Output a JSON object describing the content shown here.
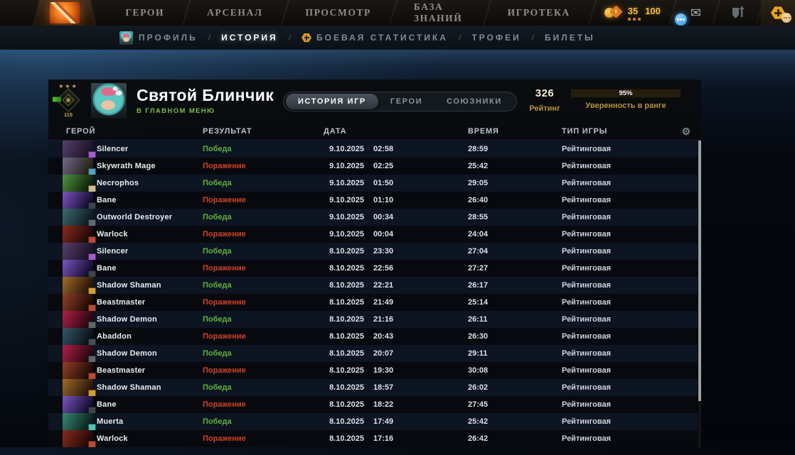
{
  "icons": {
    "settings_glyph": "⚙",
    "mail_glyph": "✉",
    "stars_glyph": "★ ★ ★"
  },
  "top_nav": {
    "items": [
      "ГЕРОИ",
      "АРСЕНАЛ",
      "ПРОСМОТР",
      "БАЗА ЗНАНИЙ",
      "ИГРОТЕКА"
    ],
    "currency": {
      "shards": "35",
      "gold": "100"
    }
  },
  "breadcrumb": {
    "items": [
      {
        "label": "ПРОФИЛЬ",
        "sep": "",
        "icon": "ic-avatar",
        "state": ""
      },
      {
        "label": "ИСТОРИЯ",
        "sep": "/",
        "icon": "",
        "state": "active"
      },
      {
        "label": "БОЕВАЯ СТАТИСТИКА",
        "sep": "/",
        "icon": "ic-coin",
        "state": ""
      },
      {
        "label": "ТРОФЕИ",
        "sep": "/",
        "icon": "",
        "state": ""
      },
      {
        "label": "БИЛЕТЫ",
        "sep": "/",
        "icon": "",
        "state": ""
      }
    ]
  },
  "profile": {
    "name": "Святой Блинчик",
    "status": "В ГЛАВНОМ МЕНЮ",
    "rank_stars": "★★★",
    "rank_number": "115",
    "tabs": [
      {
        "label": "ИСТОРИЯ ИГР",
        "state": "active"
      },
      {
        "label": "ГЕРОИ",
        "state": ""
      },
      {
        "label": "СОЮЗНИКИ",
        "state": ""
      }
    ],
    "rating": {
      "value": "326",
      "label": "Рейтинг"
    },
    "confidence": {
      "percent": "95%",
      "label": "Уверенность в ранге"
    }
  },
  "table": {
    "columns": [
      "ГЕРОЙ",
      "РЕЗУЛЬТАТ",
      "ДАТА",
      "ВРЕМЯ",
      "ТИП ИГРЫ"
    ],
    "rows": [
      {
        "hero": "Silencer",
        "result": "Победа",
        "result_class": "win",
        "date": "9.10.2025",
        "time": "02:58",
        "duration": "28:59",
        "type": "Рейтинговая",
        "portrait": [
          "#56406a",
          "#1b1226"
        ],
        "badge": "#a55cd0"
      },
      {
        "hero": "Skywrath Mage",
        "result": "Поражение",
        "result_class": "loss",
        "date": "9.10.2025",
        "time": "02:25",
        "duration": "25:42",
        "type": "Рейтинговая",
        "portrait": [
          "#6f6a8a",
          "#262016"
        ],
        "badge": "#58a0c0"
      },
      {
        "hero": "Necrophos",
        "result": "Победа",
        "result_class": "win",
        "date": "9.10.2025",
        "time": "01:50",
        "duration": "29:05",
        "type": "Рейтинговая",
        "portrait": [
          "#4e9440",
          "#0f2008"
        ],
        "badge": "#cdbd8e"
      },
      {
        "hero": "Bane",
        "result": "Поражение",
        "result_class": "loss",
        "date": "9.10.2025",
        "time": "01:10",
        "duration": "26:40",
        "type": "Рейтинговая",
        "portrait": [
          "#7a55c0",
          "#140b2e"
        ],
        "badge": "#3c444c"
      },
      {
        "hero": "Outworld Destroyer",
        "result": "Победа",
        "result_class": "win",
        "date": "9.10.2025",
        "time": "00:34",
        "duration": "28:55",
        "type": "Рейтинговая",
        "portrait": [
          "#3c6a6e",
          "#0d1a22"
        ],
        "badge": "#5c6c74"
      },
      {
        "hero": "Warlock",
        "result": "Поражение",
        "result_class": "loss",
        "date": "9.10.2025",
        "time": "00:04",
        "duration": "24:04",
        "type": "Рейтинговая",
        "portrait": [
          "#8a2a1e",
          "#1e0806"
        ],
        "badge": "#b44c3a"
      },
      {
        "hero": "Silencer",
        "result": "Победа",
        "result_class": "win",
        "date": "8.10.2025",
        "time": "23:30",
        "duration": "27:04",
        "type": "Рейтинговая",
        "portrait": [
          "#56406a",
          "#1b1226"
        ],
        "badge": "#a55cd0"
      },
      {
        "hero": "Bane",
        "result": "Поражение",
        "result_class": "loss",
        "date": "8.10.2025",
        "time": "22:56",
        "duration": "27:27",
        "type": "Рейтинговая",
        "portrait": [
          "#7a55c0",
          "#140b2e"
        ],
        "badge": "#3c444c"
      },
      {
        "hero": "Shadow Shaman",
        "result": "Победа",
        "result_class": "win",
        "date": "8.10.2025",
        "time": "22:21",
        "duration": "26:17",
        "type": "Рейтинговая",
        "portrait": [
          "#a06c2c",
          "#281304"
        ],
        "badge": "#cf9e3c"
      },
      {
        "hero": "Beastmaster",
        "result": "Поражение",
        "result_class": "loss",
        "date": "8.10.2025",
        "time": "21:49",
        "duration": "25:14",
        "type": "Рейтинговая",
        "portrait": [
          "#904026",
          "#1e0a04"
        ],
        "badge": "#b44c3a"
      },
      {
        "hero": "Shadow Demon",
        "result": "Победа",
        "result_class": "win",
        "date": "8.10.2025",
        "time": "21:16",
        "duration": "26:11",
        "type": "Рейтинговая",
        "portrait": [
          "#b02048",
          "#26060f"
        ],
        "badge": "#5e686c"
      },
      {
        "hero": "Abaddon",
        "result": "Поражение",
        "result_class": "loss",
        "date": "8.10.2025",
        "time": "20:43",
        "duration": "26:30",
        "type": "Рейтинговая",
        "portrait": [
          "#35586a",
          "#0a1014"
        ],
        "badge": "#42505a"
      },
      {
        "hero": "Shadow Demon",
        "result": "Победа",
        "result_class": "win",
        "date": "8.10.2025",
        "time": "20:07",
        "duration": "29:11",
        "type": "Рейтинговая",
        "portrait": [
          "#b02048",
          "#26060f"
        ],
        "badge": "#5e686c"
      },
      {
        "hero": "Beastmaster",
        "result": "Поражение",
        "result_class": "loss",
        "date": "8.10.2025",
        "time": "19:30",
        "duration": "30:08",
        "type": "Рейтинговая",
        "portrait": [
          "#904026",
          "#1e0a04"
        ],
        "badge": "#b44c3a"
      },
      {
        "hero": "Shadow Shaman",
        "result": "Победа",
        "result_class": "win",
        "date": "8.10.2025",
        "time": "18:57",
        "duration": "26:02",
        "type": "Рейтинговая",
        "portrait": [
          "#a06c2c",
          "#281304"
        ],
        "badge": "#cf9e3c"
      },
      {
        "hero": "Bane",
        "result": "Поражение",
        "result_class": "loss",
        "date": "8.10.2025",
        "time": "18:22",
        "duration": "27:45",
        "type": "Рейтинговая",
        "portrait": [
          "#7a55c0",
          "#140b2e"
        ],
        "badge": "#3c444c"
      },
      {
        "hero": "Muerta",
        "result": "Победа",
        "result_class": "win",
        "date": "8.10.2025",
        "time": "17:49",
        "duration": "25:42",
        "type": "Рейтинговая",
        "portrait": [
          "#368a72",
          "#0a1f1a"
        ],
        "badge": "#52c4b4"
      },
      {
        "hero": "Warlock",
        "result": "Поражение",
        "result_class": "loss",
        "date": "8.10.2025",
        "time": "17:16",
        "duration": "26:42",
        "type": "Рейтинговая",
        "portrait": [
          "#8a2a1e",
          "#1e0806"
        ],
        "badge": "#b44c3a"
      }
    ]
  },
  "colors": {
    "accent_gold": "#c8a23c",
    "win_green": "#5fb33a",
    "loss_red": "#cf4128"
  }
}
